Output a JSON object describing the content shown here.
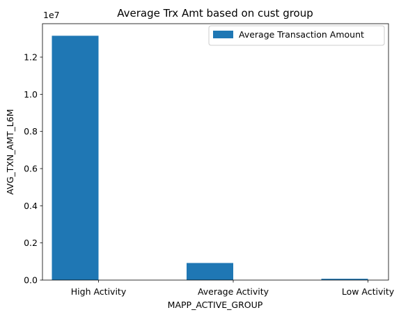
{
  "chart_data": {
    "type": "bar",
    "title": "Average Trx Amt based on cust group",
    "xlabel": "MAPP_ACTIVE_GROUP",
    "ylabel": "AVG_TXN_AMT_L6M",
    "offset_text": "1e7",
    "categories": [
      "High Activity",
      "Average Activity",
      "Low Activity"
    ],
    "series": [
      {
        "name": "Average Transaction Amount",
        "color": "#1f77b4",
        "values": [
          13150000,
          920000,
          70000
        ]
      }
    ],
    "ylim": [
      0,
      13800000
    ],
    "yticks": [
      0,
      2000000,
      4000000,
      6000000,
      8000000,
      10000000,
      12000000
    ],
    "ytick_labels": [
      "0.0",
      "0.2",
      "0.4",
      "0.6",
      "0.8",
      "1.0",
      "1.2"
    ],
    "grid": false,
    "legend_position": "top-right"
  }
}
